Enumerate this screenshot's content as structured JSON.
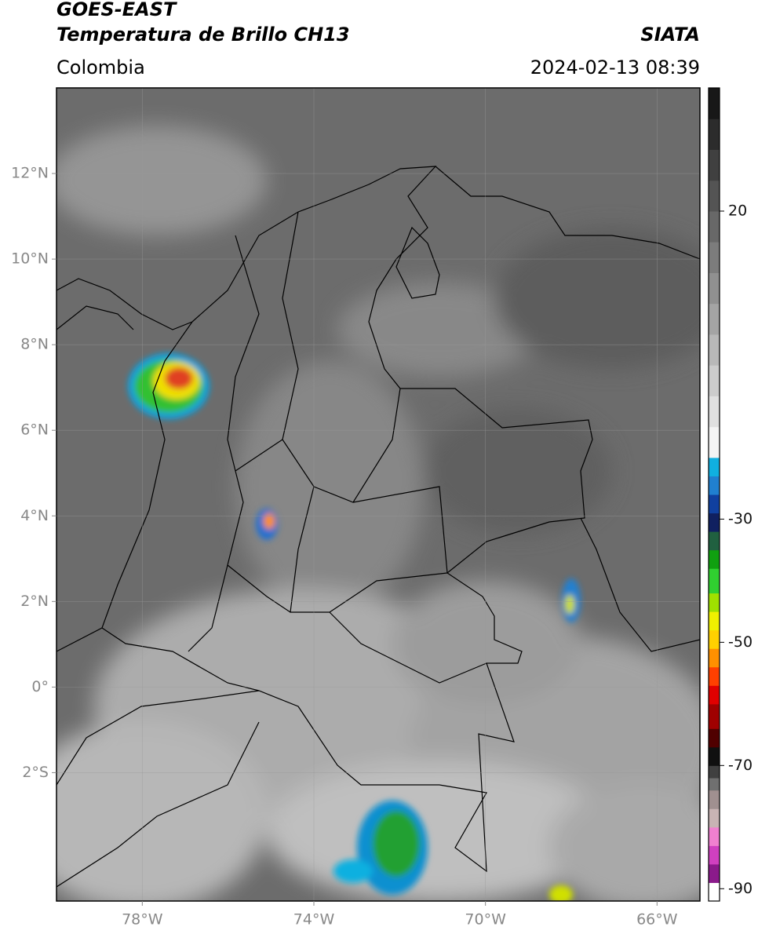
{
  "header": {
    "satellite": "GOES-EAST",
    "product": "Temperatura de Brillo CH13",
    "region": "Colombia",
    "source": "SIATA",
    "datetime": "2024-02-13 08:39"
  },
  "chart_data": {
    "type": "map",
    "xlim": [
      -80,
      -65
    ],
    "ylim": [
      -5,
      14
    ],
    "xticks": [
      {
        "value": -78,
        "label": "78°W"
      },
      {
        "value": -74,
        "label": "74°W"
      },
      {
        "value": -70,
        "label": "70°W"
      },
      {
        "value": -66,
        "label": "66°W"
      }
    ],
    "yticks": [
      {
        "value": 12,
        "label": "12°N"
      },
      {
        "value": 10,
        "label": "10°N"
      },
      {
        "value": 8,
        "label": "8°N"
      },
      {
        "value": 6,
        "label": "6°N"
      },
      {
        "value": 4,
        "label": "4°N"
      },
      {
        "value": 2,
        "label": "2°N"
      },
      {
        "value": 0,
        "label": "0°"
      },
      {
        "value": -2,
        "label": "2°S"
      }
    ],
    "grid": true,
    "colorbar": {
      "lim": [
        -92,
        40
      ],
      "ticks": [
        20,
        -30,
        -50,
        -70,
        -90
      ],
      "colormap": [
        {
          "value": -92,
          "color": "#ffffff"
        },
        {
          "value": -89,
          "color": "#8b1a8b"
        },
        {
          "value": -86,
          "color": "#d040c0"
        },
        {
          "value": -83,
          "color": "#f080d0"
        },
        {
          "value": -80,
          "color": "#c8b4b4"
        },
        {
          "value": -77,
          "color": "#a09090"
        },
        {
          "value": -74,
          "color": "#707070"
        },
        {
          "value": -72,
          "color": "#404040"
        },
        {
          "value": -70,
          "color": "#101010"
        },
        {
          "value": -67,
          "color": "#500000"
        },
        {
          "value": -64,
          "color": "#a00000"
        },
        {
          "value": -60,
          "color": "#e00000"
        },
        {
          "value": -57,
          "color": "#ff4000"
        },
        {
          "value": -54,
          "color": "#ff9000"
        },
        {
          "value": -51,
          "color": "#ffd000"
        },
        {
          "value": -48,
          "color": "#f0f000"
        },
        {
          "value": -45,
          "color": "#a0e000"
        },
        {
          "value": -42,
          "color": "#30d030"
        },
        {
          "value": -38,
          "color": "#10a010"
        },
        {
          "value": -35,
          "color": "#206040"
        },
        {
          "value": -32,
          "color": "#102060"
        },
        {
          "value": -29,
          "color": "#1040a0"
        },
        {
          "value": -26,
          "color": "#2080d0"
        },
        {
          "value": -23,
          "color": "#10b0e0"
        },
        {
          "value": -20,
          "color": "#f4f4f4"
        },
        {
          "value": -15,
          "color": "#e0e0e0"
        },
        {
          "value": -10,
          "color": "#cccccc"
        },
        {
          "value": -5,
          "color": "#b8b8b8"
        },
        {
          "value": 0,
          "color": "#a4a4a4"
        },
        {
          "value": 5,
          "color": "#909090"
        },
        {
          "value": 10,
          "color": "#7c7c7c"
        },
        {
          "value": 15,
          "color": "#686868"
        },
        {
          "value": 20,
          "color": "#545454"
        },
        {
          "value": 25,
          "color": "#404040"
        },
        {
          "value": 30,
          "color": "#2c2c2c"
        },
        {
          "value": 35,
          "color": "#181818"
        }
      ]
    }
  }
}
